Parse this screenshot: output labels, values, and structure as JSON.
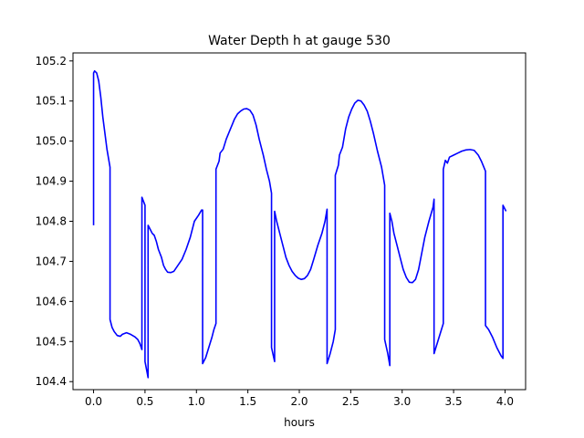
{
  "chart_data": {
    "type": "line",
    "title": "Water Depth h at gauge 530",
    "xlabel": "hours",
    "ylabel": "",
    "xlim": [
      -0.2,
      4.2
    ],
    "ylim": [
      104.38,
      105.22
    ],
    "xticks": [
      "0.0",
      "0.5",
      "1.0",
      "1.5",
      "2.0",
      "2.5",
      "3.0",
      "3.5",
      "4.0"
    ],
    "yticks": [
      "104.4",
      "104.5",
      "104.6",
      "104.7",
      "104.8",
      "104.9",
      "105.0",
      "105.1",
      "105.2"
    ],
    "grid": false,
    "series": [
      {
        "color": "#0000ff",
        "points": [
          [
            0.0,
            104.79
          ],
          [
            0.0,
            105.17
          ],
          [
            0.01,
            105.175
          ],
          [
            0.03,
            105.17
          ],
          [
            0.05,
            105.15
          ],
          [
            0.07,
            105.11
          ],
          [
            0.09,
            105.06
          ],
          [
            0.11,
            105.02
          ],
          [
            0.13,
            104.98
          ],
          [
            0.16,
            104.935
          ],
          [
            0.16,
            104.555
          ],
          [
            0.18,
            104.535
          ],
          [
            0.2,
            104.525
          ],
          [
            0.23,
            104.515
          ],
          [
            0.26,
            104.513
          ],
          [
            0.28,
            104.518
          ],
          [
            0.32,
            104.522
          ],
          [
            0.36,
            104.518
          ],
          [
            0.4,
            104.512
          ],
          [
            0.43,
            104.505
          ],
          [
            0.45,
            104.495
          ],
          [
            0.47,
            104.48
          ],
          [
            0.47,
            104.86
          ],
          [
            0.5,
            104.84
          ],
          [
            0.5,
            104.45
          ],
          [
            0.53,
            104.41
          ],
          [
            0.53,
            104.79
          ],
          [
            0.55,
            104.78
          ],
          [
            0.57,
            104.77
          ],
          [
            0.59,
            104.765
          ],
          [
            0.61,
            104.75
          ],
          [
            0.63,
            104.73
          ],
          [
            0.66,
            104.71
          ],
          [
            0.68,
            104.69
          ],
          [
            0.7,
            104.68
          ],
          [
            0.72,
            104.673
          ],
          [
            0.75,
            104.672
          ],
          [
            0.78,
            104.675
          ],
          [
            0.82,
            104.69
          ],
          [
            0.86,
            104.705
          ],
          [
            0.9,
            104.73
          ],
          [
            0.94,
            104.76
          ],
          [
            0.98,
            104.8
          ],
          [
            1.02,
            104.815
          ],
          [
            1.05,
            104.828
          ],
          [
            1.06,
            104.828
          ],
          [
            1.06,
            104.445
          ],
          [
            1.09,
            104.46
          ],
          [
            1.12,
            104.485
          ],
          [
            1.15,
            104.51
          ],
          [
            1.17,
            104.53
          ],
          [
            1.19,
            104.545
          ],
          [
            1.19,
            104.93
          ],
          [
            1.22,
            104.95
          ],
          [
            1.23,
            104.97
          ],
          [
            1.26,
            104.98
          ],
          [
            1.29,
            105.005
          ],
          [
            1.33,
            105.03
          ],
          [
            1.37,
            105.055
          ],
          [
            1.4,
            105.068
          ],
          [
            1.43,
            105.075
          ],
          [
            1.46,
            105.08
          ],
          [
            1.49,
            105.081
          ],
          [
            1.52,
            105.077
          ],
          [
            1.55,
            105.065
          ],
          [
            1.58,
            105.04
          ],
          [
            1.61,
            105.005
          ],
          [
            1.65,
            104.965
          ],
          [
            1.68,
            104.93
          ],
          [
            1.71,
            104.9
          ],
          [
            1.73,
            104.87
          ],
          [
            1.73,
            104.485
          ],
          [
            1.76,
            104.45
          ],
          [
            1.76,
            104.825
          ],
          [
            1.78,
            104.8
          ],
          [
            1.81,
            104.77
          ],
          [
            1.84,
            104.74
          ],
          [
            1.87,
            104.71
          ],
          [
            1.9,
            104.69
          ],
          [
            1.93,
            104.675
          ],
          [
            1.96,
            104.665
          ],
          [
            1.99,
            104.658
          ],
          [
            2.02,
            104.655
          ],
          [
            2.05,
            104.657
          ],
          [
            2.08,
            104.665
          ],
          [
            2.11,
            104.68
          ],
          [
            2.14,
            104.705
          ],
          [
            2.18,
            104.74
          ],
          [
            2.22,
            104.77
          ],
          [
            2.25,
            104.8
          ],
          [
            2.27,
            104.83
          ],
          [
            2.27,
            104.445
          ],
          [
            2.3,
            104.47
          ],
          [
            2.33,
            104.5
          ],
          [
            2.35,
            104.53
          ],
          [
            2.35,
            104.915
          ],
          [
            2.38,
            104.94
          ],
          [
            2.39,
            104.965
          ],
          [
            2.42,
            104.985
          ],
          [
            2.45,
            105.03
          ],
          [
            2.48,
            105.06
          ],
          [
            2.51,
            105.08
          ],
          [
            2.54,
            105.095
          ],
          [
            2.57,
            105.102
          ],
          [
            2.6,
            105.1
          ],
          [
            2.63,
            105.09
          ],
          [
            2.66,
            105.075
          ],
          [
            2.69,
            105.05
          ],
          [
            2.72,
            105.02
          ],
          [
            2.76,
            104.975
          ],
          [
            2.8,
            104.935
          ],
          [
            2.83,
            104.89
          ],
          [
            2.83,
            104.505
          ],
          [
            2.86,
            104.47
          ],
          [
            2.88,
            104.44
          ],
          [
            2.88,
            104.82
          ],
          [
            2.9,
            104.8
          ],
          [
            2.92,
            104.77
          ],
          [
            2.95,
            104.74
          ],
          [
            2.98,
            104.71
          ],
          [
            3.01,
            104.68
          ],
          [
            3.04,
            104.66
          ],
          [
            3.07,
            104.648
          ],
          [
            3.1,
            104.647
          ],
          [
            3.13,
            104.655
          ],
          [
            3.16,
            104.68
          ],
          [
            3.19,
            104.72
          ],
          [
            3.22,
            104.76
          ],
          [
            3.26,
            104.8
          ],
          [
            3.3,
            104.835
          ],
          [
            3.31,
            104.855
          ],
          [
            3.31,
            104.47
          ],
          [
            3.34,
            104.495
          ],
          [
            3.37,
            104.52
          ],
          [
            3.4,
            104.545
          ],
          [
            3.4,
            104.93
          ],
          [
            3.42,
            104.952
          ],
          [
            3.44,
            104.945
          ],
          [
            3.46,
            104.96
          ],
          [
            3.5,
            104.965
          ],
          [
            3.54,
            104.97
          ],
          [
            3.58,
            104.975
          ],
          [
            3.62,
            104.978
          ],
          [
            3.66,
            104.979
          ],
          [
            3.7,
            104.977
          ],
          [
            3.74,
            104.965
          ],
          [
            3.77,
            104.95
          ],
          [
            3.81,
            104.925
          ],
          [
            3.81,
            104.54
          ],
          [
            3.84,
            104.53
          ],
          [
            3.88,
            104.51
          ],
          [
            3.92,
            104.485
          ],
          [
            3.96,
            104.465
          ],
          [
            3.98,
            104.458
          ],
          [
            3.98,
            104.84
          ],
          [
            4.01,
            104.825
          ]
        ]
      }
    ]
  }
}
